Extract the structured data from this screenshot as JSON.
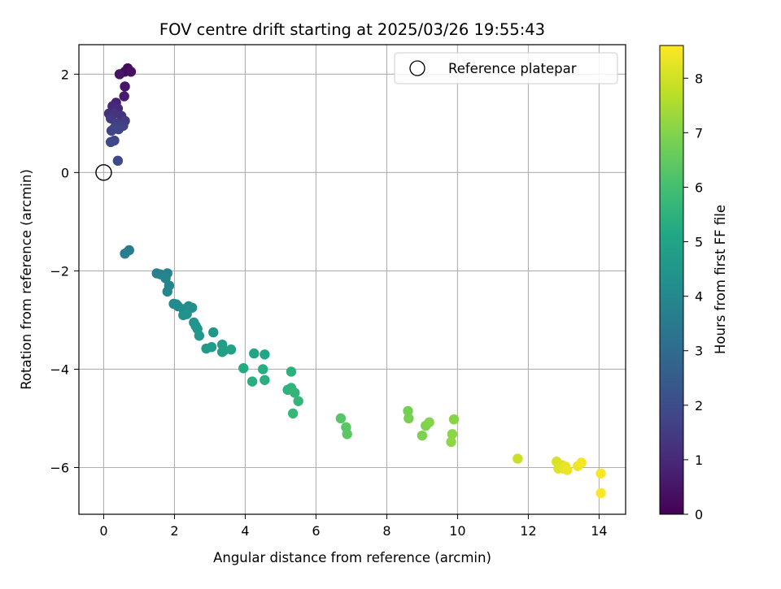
{
  "chart_data": {
    "type": "scatter",
    "title": "FOV centre drift starting at 2025/03/26 19:55:43",
    "xlabel": "Angular distance from reference (arcmin)",
    "ylabel": "Rotation from reference (arcmin)",
    "xlim": [
      -0.7,
      14.75
    ],
    "ylim": [
      -6.95,
      2.6
    ],
    "xticks": [
      0,
      2,
      4,
      6,
      8,
      10,
      12,
      14
    ],
    "yticks": [
      -6,
      -4,
      -2,
      0,
      2
    ],
    "grid": true,
    "legend": {
      "placement": "top-right",
      "entries": [
        {
          "label": "Reference platepar",
          "marker": "open-circle"
        }
      ]
    },
    "reference_point": {
      "x": 0,
      "y": 0
    },
    "colorbar": {
      "label": "Hours from first FF file",
      "colormap": "viridis",
      "range": [
        0,
        8.6
      ],
      "ticks": [
        0,
        1,
        2,
        3,
        4,
        5,
        6,
        7,
        8
      ]
    },
    "points": [
      [
        0.6,
        2.05,
        0.15
      ],
      [
        0.68,
        2.12,
        0.25
      ],
      [
        0.77,
        2.05,
        0.35
      ],
      [
        0.45,
        2.0,
        0.45
      ],
      [
        0.6,
        1.75,
        0.55
      ],
      [
        0.58,
        1.55,
        0.65
      ],
      [
        0.35,
        1.42,
        0.8
      ],
      [
        0.25,
        1.35,
        0.95
      ],
      [
        0.4,
        1.3,
        1.05
      ],
      [
        0.15,
        1.2,
        1.15
      ],
      [
        0.3,
        1.2,
        1.25
      ],
      [
        0.5,
        1.15,
        1.3
      ],
      [
        0.2,
        1.1,
        1.4
      ],
      [
        0.6,
        1.05,
        1.45
      ],
      [
        0.35,
        1.0,
        1.55
      ],
      [
        0.45,
        0.95,
        1.6
      ],
      [
        0.55,
        0.95,
        1.65
      ],
      [
        0.3,
        0.9,
        1.7
      ],
      [
        0.42,
        0.88,
        1.75
      ],
      [
        0.22,
        0.85,
        1.75
      ],
      [
        0.3,
        0.65,
        1.8
      ],
      [
        0.2,
        0.62,
        1.85
      ],
      [
        0.4,
        0.24,
        1.9
      ],
      [
        0.72,
        -1.58,
        3.55
      ],
      [
        0.6,
        -1.65,
        3.6
      ],
      [
        1.5,
        -2.05,
        3.7
      ],
      [
        1.6,
        -2.07,
        3.75
      ],
      [
        1.8,
        -2.05,
        3.8
      ],
      [
        1.75,
        -2.15,
        3.85
      ],
      [
        1.85,
        -2.3,
        3.9
      ],
      [
        1.8,
        -2.42,
        3.95
      ],
      [
        1.98,
        -2.67,
        4.0
      ],
      [
        2.05,
        -2.68,
        4.05
      ],
      [
        2.1,
        -2.72,
        4.1
      ],
      [
        2.25,
        -2.78,
        4.15
      ],
      [
        2.4,
        -2.72,
        4.2
      ],
      [
        2.5,
        -2.75,
        4.25
      ],
      [
        2.25,
        -2.9,
        4.3
      ],
      [
        2.35,
        -2.88,
        4.35
      ],
      [
        2.55,
        -3.05,
        4.4
      ],
      [
        2.6,
        -3.12,
        4.45
      ],
      [
        2.65,
        -3.18,
        4.5
      ],
      [
        2.7,
        -3.32,
        4.55
      ],
      [
        3.1,
        -3.25,
        4.6
      ],
      [
        2.9,
        -3.58,
        4.65
      ],
      [
        3.05,
        -3.55,
        4.7
      ],
      [
        3.35,
        -3.5,
        4.75
      ],
      [
        3.4,
        -3.62,
        4.8
      ],
      [
        3.35,
        -3.65,
        4.85
      ],
      [
        3.6,
        -3.6,
        4.9
      ],
      [
        4.25,
        -3.68,
        5.0
      ],
      [
        4.55,
        -3.7,
        5.1
      ],
      [
        3.95,
        -3.98,
        5.2
      ],
      [
        4.5,
        -4.0,
        5.3
      ],
      [
        4.55,
        -4.22,
        5.35
      ],
      [
        4.2,
        -4.25,
        5.4
      ],
      [
        5.3,
        -4.05,
        5.45
      ],
      [
        5.2,
        -4.42,
        5.5
      ],
      [
        5.3,
        -4.38,
        5.55
      ],
      [
        5.4,
        -4.48,
        5.6
      ],
      [
        5.5,
        -4.65,
        5.65
      ],
      [
        5.35,
        -4.9,
        5.7
      ],
      [
        6.7,
        -5.0,
        6.3
      ],
      [
        6.85,
        -5.18,
        6.35
      ],
      [
        6.88,
        -5.32,
        6.4
      ],
      [
        8.6,
        -4.85,
        6.8
      ],
      [
        8.62,
        -5.0,
        6.85
      ],
      [
        9.0,
        -5.35,
        6.9
      ],
      [
        9.1,
        -5.15,
        6.95
      ],
      [
        9.2,
        -5.08,
        7.0
      ],
      [
        9.9,
        -5.02,
        7.05
      ],
      [
        9.85,
        -5.32,
        7.1
      ],
      [
        9.82,
        -5.48,
        7.15
      ],
      [
        11.7,
        -5.82,
        7.9
      ],
      [
        12.8,
        -5.88,
        8.1
      ],
      [
        12.85,
        -6.02,
        8.15
      ],
      [
        12.95,
        -5.95,
        8.2
      ],
      [
        13.0,
        -6.02,
        8.25
      ],
      [
        13.05,
        -5.98,
        8.3
      ],
      [
        13.1,
        -6.05,
        8.35
      ],
      [
        13.4,
        -5.97,
        8.4
      ],
      [
        13.5,
        -5.9,
        8.45
      ],
      [
        14.05,
        -6.12,
        8.55
      ],
      [
        14.05,
        -6.52,
        8.6
      ]
    ]
  }
}
